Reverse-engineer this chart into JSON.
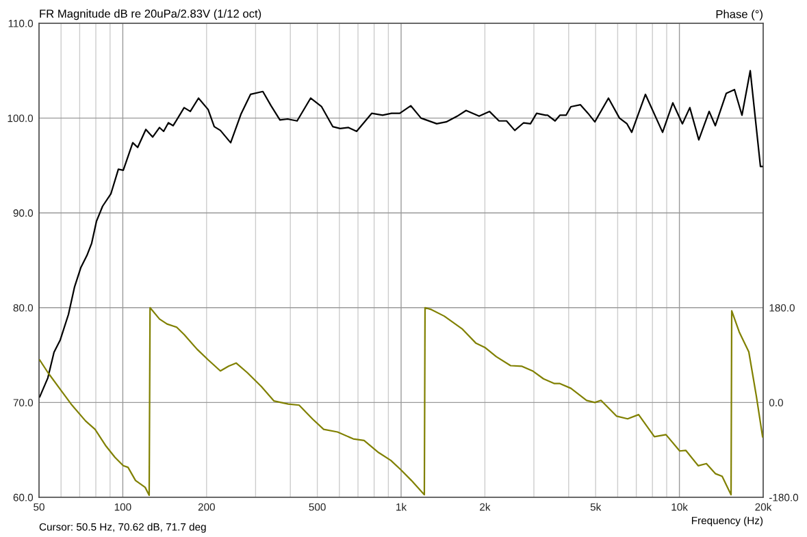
{
  "chart_data": {
    "type": "line",
    "title": "FR Magnitude dB re 20uPa/2.83V (1/12 oct)",
    "xlabel": "Frequency (Hz)",
    "y2label": "Phase (°)",
    "annotations": [
      "Cursor: 50.5 Hz, 70.62 dB, 71.7 deg"
    ],
    "log": "x",
    "grid": true,
    "marker": "none",
    "line_style": "solid",
    "legend": false,
    "xlim": [
      50,
      20000
    ],
    "xticks": [
      50,
      {
        "value": 60,
        "label": null
      },
      {
        "value": 70,
        "label": null
      },
      {
        "value": 80,
        "label": null
      },
      {
        "value": 90,
        "label": null
      },
      100,
      200,
      {
        "value": 300,
        "label": null
      },
      {
        "value": 400,
        "label": null
      },
      500,
      {
        "value": 600,
        "label": null
      },
      {
        "value": 700,
        "label": null
      },
      {
        "value": 800,
        "label": null
      },
      {
        "value": 900,
        "label": null
      },
      {
        "value": 1000,
        "label": "1k"
      },
      {
        "value": 2000,
        "label": "2k"
      },
      {
        "value": 3000,
        "label": null
      },
      {
        "value": 4000,
        "label": null
      },
      {
        "value": 5000,
        "label": "5k"
      },
      {
        "value": 6000,
        "label": null
      },
      {
        "value": 7000,
        "label": null
      },
      {
        "value": 8000,
        "label": null
      },
      {
        "value": 9000,
        "label": null
      },
      {
        "value": 10000,
        "label": "10k"
      },
      {
        "value": 20000,
        "label": "20k"
      }
    ],
    "ylim": [
      60,
      110
    ],
    "yticks": [
      {
        "value": 60,
        "label": "60.0"
      },
      {
        "value": 70,
        "label": "70.0"
      },
      {
        "value": 80,
        "label": "80.0"
      },
      {
        "value": 90,
        "label": "90.0"
      },
      {
        "value": 100,
        "label": "100.0"
      },
      {
        "value": 110,
        "label": "110.0"
      }
    ],
    "y2lim": [
      -180,
      720
    ],
    "y2ticks": [
      {
        "value": -180,
        "label": "-180.0"
      },
      {
        "value": 0,
        "label": "0.0"
      },
      {
        "value": 180,
        "label": "180.0"
      }
    ],
    "series": [
      {
        "color": "#000000",
        "x": [
          50.3,
          53.8,
          56.6,
          59.6,
          63.8,
          67.1,
          70.6,
          74.3,
          77.3,
          80.4,
          84.6,
          90.6,
          96.4,
          100.4,
          108.6,
          113.1,
          121.0,
          128.0,
          135.5,
          140.2,
          145.8,
          151.7,
          166.1,
          174.8,
          187.1,
          202.6,
          213.1,
          224.2,
          244.1,
          265.7,
          287.7,
          318.6,
          341.0,
          367.0,
          391,
          423,
          473,
          518,
          568,
          604,
          647,
          692,
          784,
          858,
          924,
          989,
          1083,
          1179,
          1343,
          1453,
          1591,
          1712,
          1907,
          2077,
          2248,
          2392,
          2561,
          2756,
          2916,
          3069,
          3303,
          3360,
          3575,
          3720,
          3915,
          4074,
          4410,
          4695,
          4967,
          5560,
          6090,
          6480,
          6740,
          7550,
          8700,
          9470,
          10250,
          10900,
          11740,
          12790,
          13460,
          14730,
          15770,
          16780,
          17970,
          19550,
          20000
        ],
        "values": [
          70.6,
          72.6,
          75.3,
          76.6,
          79.3,
          82.2,
          84.2,
          85.5,
          86.8,
          89.1,
          90.7,
          92.0,
          94.6,
          94.5,
          97.4,
          96.9,
          98.8,
          98.0,
          99.0,
          98.6,
          99.5,
          99.2,
          101.1,
          100.7,
          102.1,
          100.9,
          99.1,
          98.7,
          97.4,
          100.4,
          102.5,
          102.8,
          101.3,
          99.8,
          99.9,
          99.7,
          102.1,
          101.2,
          99.1,
          98.9,
          99.0,
          98.6,
          100.5,
          100.3,
          100.5,
          100.5,
          101.3,
          100.0,
          99.4,
          99.6,
          100.2,
          100.8,
          100.2,
          100.7,
          99.7,
          99.7,
          98.7,
          99.5,
          99.4,
          100.5,
          100.3,
          100.3,
          99.7,
          100.3,
          100.3,
          101.2,
          101.4,
          100.5,
          99.6,
          102.1,
          100.0,
          99.4,
          98.5,
          102.5,
          98.5,
          101.6,
          99.4,
          101.1,
          97.7,
          100.7,
          99.2,
          102.6,
          103.0,
          100.3,
          105.0,
          94.9,
          94.9
        ]
      },
      {
        "color": "#808000",
        "axis": "y2",
        "x": [
          50.3,
          53.8,
          59.6,
          65.2,
          73.5,
          79.5,
          87.1,
          93.7,
          100.4,
          104.4,
          111.1,
          120.3,
          124.4,
          125.3,
          135.5,
          144.2,
          156.1,
          166.1,
          185,
          202.6,
          224.2,
          240,
          255.4,
          279.7,
          315,
          349,
          393,
          430,
          482,
          527,
          591,
          673,
          736,
          830,
          919,
          995,
          1089,
          1212,
          1219,
          1276,
          1429,
          1655,
          1854,
          2007,
          2198,
          2474,
          2710,
          2967,
          3248,
          3556,
          3720,
          4074,
          4640,
          4967,
          5226,
          5952,
          6515,
          7135,
          8130,
          8947,
          10025,
          10550,
          11680,
          12500,
          13460,
          14240,
          15330,
          15415,
          16400,
          17760,
          18900,
          19900
        ],
        "values": [
          80.6,
          57,
          25,
          -3,
          -35,
          -51,
          -83,
          -104,
          -120,
          -123,
          -148,
          -161,
          -176,
          180,
          158.5,
          149,
          143,
          129,
          101,
          81,
          60,
          69,
          75,
          57,
          30,
          3,
          -3,
          -5,
          -32,
          -51,
          -56,
          -69,
          -72,
          -95,
          -110,
          -127,
          -148,
          -175,
          180,
          177,
          164,
          140,
          113,
          104,
          87,
          70,
          69,
          60,
          45,
          36,
          36,
          27,
          4,
          0,
          4,
          -26,
          -31,
          -23,
          -65,
          -61,
          -92,
          -91,
          -120,
          -116,
          -135,
          -140,
          -175,
          174,
          134,
          96,
          12,
          -65
        ]
      }
    ]
  }
}
